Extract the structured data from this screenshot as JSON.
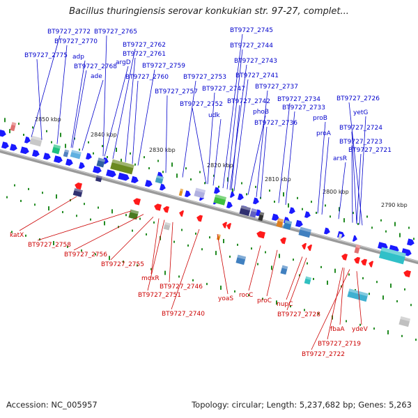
{
  "title": "Bacillus thuringiensis serovar konkukian str. 97-27, complet...",
  "footer": {
    "accession": "Accession: NC_005957",
    "summary": "Topology: circular; Length: 5,237,682 bp; Genes: 5,263"
  },
  "colors": {
    "forward_label": "#0000cc",
    "reverse_label": "#cc0000",
    "forward_arrow": "#1a1aff",
    "reverse_arrow": "#ff1a1a",
    "tick": "#228b22",
    "backbone": "#808080"
  },
  "scale_ticks": [
    "2850 kbp",
    "2840 kbp",
    "2830 kbp",
    "2820 kbp",
    "2810 kbp",
    "2800 kbp",
    "2790 kbp"
  ],
  "forward_genes": [
    "BT9727_2772",
    "BT9727_2765",
    "BT9727_2770",
    "BT9727_2775",
    "adp",
    "BT9727_2768",
    "ade",
    "BT9727_2762",
    "BT9727_2761",
    "argD",
    "BT9727_2759",
    "BT9727_2760",
    "BT9727_2757",
    "BT9727_2753",
    "BT9727_2747",
    "BT9727_2752",
    "udk",
    "BT9727_2745",
    "BT9727_2744",
    "BT9727_2743",
    "BT9727_2741",
    "BT9727_2737",
    "BT9727_2742",
    "phoB",
    "BT9727_2734",
    "BT9727_2733",
    "BT9727_2736",
    "proB",
    "proA",
    "BT9727_2726",
    "yetG",
    "BT9727_2724",
    "BT9727_2723",
    "BT9727_2721",
    "arsR"
  ],
  "reverse_genes": [
    "katX",
    "BT9727_2758",
    "BT9727_2756",
    "BT9727_2755",
    "moxR",
    "BT9727_2746",
    "BT9727_2751",
    "yoaS",
    "BT9727_2740",
    "rocC",
    "proC",
    "nupC",
    "BT9727_2728",
    "fbaA",
    "ydeV",
    "BT9727_2719",
    "BT9727_2722"
  ]
}
